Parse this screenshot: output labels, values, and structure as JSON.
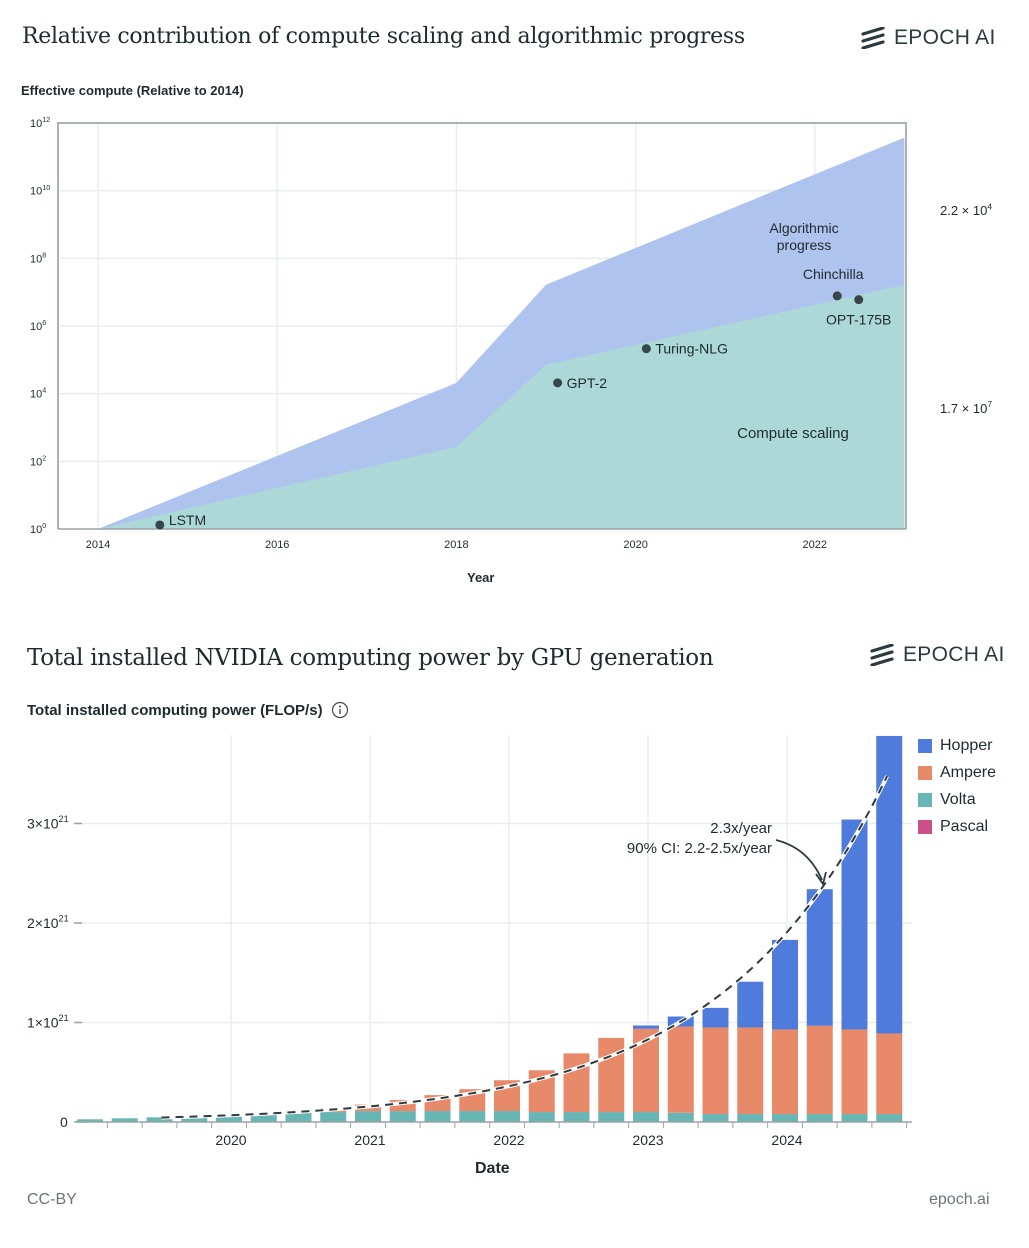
{
  "brand": {
    "logo_text": "EPOCH AI",
    "footer_license": "CC-BY",
    "footer_site": "epoch.ai"
  },
  "chart_data": [
    {
      "type": "area",
      "title": "Relative contribution of compute scaling and algorithmic progress",
      "ylabel": "Effective compute (Relative to 2014)",
      "xlabel": "Year",
      "yscale": "log10",
      "ylim_exp": [
        0,
        12
      ],
      "xlim": [
        2014,
        2023
      ],
      "x_ticks": [
        2014,
        2016,
        2018,
        2020,
        2022
      ],
      "x_tick_labels": [
        "2014",
        "2016",
        "2018",
        "2020",
        "2022"
      ],
      "y_tick_base": "10",
      "y_tick_exponents": [
        "0",
        "2",
        "4",
        "6",
        "8",
        "10",
        "12"
      ],
      "grid": true,
      "series": [
        {
          "name": "Algorithmic progress",
          "label_lines": [
            "Algorithmic",
            "progress"
          ],
          "color": "#aec3ee",
          "x": [
            2014,
            2018,
            2019,
            2023
          ],
          "log10_y": [
            0,
            4.32,
            7.22,
            11.57
          ]
        },
        {
          "name": "Compute scaling",
          "label_lines": [
            "Compute scaling"
          ],
          "color": "#acd8d8",
          "x": [
            2014,
            2018,
            2019,
            2023
          ],
          "log10_y": [
            0,
            2.43,
            4.85,
            7.22
          ]
        }
      ],
      "points": [
        {
          "name": "LSTM",
          "x": 2014.69,
          "log10_y": 0.12
        },
        {
          "name": "GPT-2",
          "x": 2019.13,
          "log10_y": 4.32
        },
        {
          "name": "Turing-NLG",
          "x": 2020.12,
          "log10_y": 5.33
        },
        {
          "name": "Chinchilla",
          "x": 2022.25,
          "log10_y": 6.89
        },
        {
          "name": "OPT-175B",
          "x": 2022.49,
          "log10_y": 6.78
        }
      ],
      "brackets": [
        {
          "label_base": "2.2 × 10",
          "label_exp": "4",
          "from_log10": 7.22,
          "to_log10": 11.57
        },
        {
          "label_base": "1.7 × 10",
          "label_exp": "7",
          "from_log10": 0,
          "to_log10": 7.22
        }
      ]
    },
    {
      "type": "bar",
      "stacked": true,
      "title": "Total installed NVIDIA computing power by GPU generation",
      "ylabel": "Total installed computing power (FLOP/s)",
      "xlabel": "Date",
      "unit_note": "values in units of 1e21 FLOP/s",
      "ylim": [
        0,
        3.9
      ],
      "y_ticks": [
        0,
        1,
        2,
        3
      ],
      "y_tick_labels": [
        {
          "base": "0",
          "exp": ""
        },
        {
          "base": "1×10",
          "exp": "21"
        },
        {
          "base": "2×10",
          "exp": "21"
        },
        {
          "base": "3×10",
          "exp": "21"
        }
      ],
      "x_ticks": [
        2020,
        2021,
        2022,
        2023,
        2024
      ],
      "x_tick_labels": [
        "2020",
        "2021",
        "2022",
        "2023",
        "2024"
      ],
      "x": [
        2019.0,
        2019.25,
        2019.5,
        2019.75,
        2020.0,
        2020.25,
        2020.5,
        2020.75,
        2021.0,
        2021.25,
        2021.5,
        2021.75,
        2022.0,
        2022.25,
        2022.5,
        2022.75,
        2023.0,
        2023.25,
        2023.5,
        2023.75,
        2024.0,
        2024.25,
        2024.5,
        2024.75
      ],
      "legend_position": "top-right",
      "series": [
        {
          "name": "Pascal",
          "color": "#c9508a",
          "values": [
            0,
            0,
            0,
            0,
            0,
            0,
            0,
            0,
            0,
            0,
            0,
            0,
            0,
            0,
            0,
            0,
            0,
            0,
            0,
            0,
            0,
            0,
            0,
            0
          ]
        },
        {
          "name": "Volta",
          "color": "#68b5b5",
          "values": [
            0.027,
            0.037,
            0.047,
            0.054,
            0.06,
            0.08,
            0.1,
            0.1,
            0.11,
            0.11,
            0.11,
            0.11,
            0.11,
            0.1,
            0.1,
            0.1,
            0.1,
            0.093,
            0.08,
            0.08,
            0.08,
            0.08,
            0.08,
            0.08
          ]
        },
        {
          "name": "Ampere",
          "color": "#e8896a",
          "values": [
            0,
            0,
            0,
            0,
            0,
            0,
            0,
            0.04,
            0.065,
            0.11,
            0.16,
            0.22,
            0.31,
            0.42,
            0.59,
            0.745,
            0.837,
            0.867,
            0.87,
            0.87,
            0.85,
            0.887,
            0.85,
            0.81
          ]
        },
        {
          "name": "Hopper",
          "color": "#4f7bdc",
          "values": [
            0,
            0,
            0,
            0,
            0,
            0,
            0,
            0,
            0,
            0,
            0,
            0,
            0,
            0,
            0,
            0,
            0.033,
            0.1,
            0.197,
            0.46,
            0.9,
            1.373,
            2.11,
            2.99
          ]
        }
      ],
      "legend_order": [
        "Hopper",
        "Ampere",
        "Volta",
        "Pascal"
      ],
      "trend": {
        "growth_per_year": 2.3,
        "anchor_x": 2024.25,
        "anchor_value": 2.35,
        "x_start": 2019.5,
        "x_end": 2024.72,
        "label": "2.3x/year",
        "ci_label": "90% CI: 2.2-2.5x/year"
      }
    }
  ]
}
